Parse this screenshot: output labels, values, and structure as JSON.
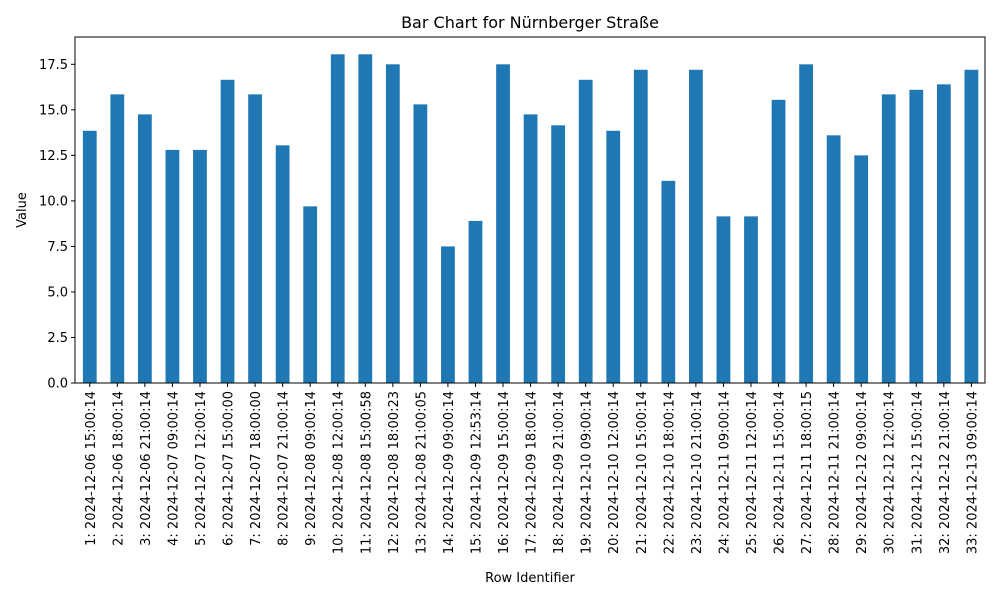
{
  "chart_data": {
    "type": "bar",
    "title": "Bar Chart for Nürnberger Straße",
    "xlabel": "Row Identifier",
    "ylabel": "Value",
    "ylim": [
      0,
      19.0
    ],
    "yticks": [
      "0.0",
      "2.5",
      "5.0",
      "7.5",
      "10.0",
      "12.5",
      "15.0",
      "17.5"
    ],
    "bar_color": "#1f77b4",
    "grid": false,
    "categories": [
      "1: 2024-12-06 15:00:14",
      "2: 2024-12-06 18:00:14",
      "3: 2024-12-06 21:00:14",
      "4: 2024-12-07 09:00:14",
      "5: 2024-12-07 12:00:14",
      "6: 2024-12-07 15:00:00",
      "7: 2024-12-07 18:00:00",
      "8: 2024-12-07 21:00:14",
      "9: 2024-12-08 09:00:14",
      "10: 2024-12-08 12:00:14",
      "11: 2024-12-08 15:00:58",
      "12: 2024-12-08 18:00:23",
      "13: 2024-12-08 21:00:05",
      "14: 2024-12-09 09:00:14",
      "15: 2024-12-09 12:53:14",
      "16: 2024-12-09 15:00:14",
      "17: 2024-12-09 18:00:14",
      "18: 2024-12-09 21:00:14",
      "19: 2024-12-10 09:00:14",
      "20: 2024-12-10 12:00:14",
      "21: 2024-12-10 15:00:14",
      "22: 2024-12-10 18:00:14",
      "23: 2024-12-10 21:00:14",
      "24: 2024-12-11 09:00:14",
      "25: 2024-12-11 12:00:14",
      "26: 2024-12-11 15:00:14",
      "27: 2024-12-11 18:00:15",
      "28: 2024-12-11 21:00:14",
      "29: 2024-12-12 09:00:14",
      "30: 2024-12-12 12:00:14",
      "31: 2024-12-12 15:00:14",
      "32: 2024-12-12 21:00:14",
      "33: 2024-12-13 09:00:14"
    ],
    "values": [
      13.85,
      15.85,
      14.75,
      12.8,
      12.8,
      16.65,
      15.85,
      13.05,
      9.7,
      18.05,
      18.05,
      17.5,
      15.3,
      7.5,
      8.9,
      17.5,
      14.75,
      14.15,
      16.65,
      13.85,
      17.2,
      11.1,
      17.2,
      9.15,
      9.15,
      15.55,
      17.5,
      13.6,
      12.5,
      15.85,
      16.1,
      16.4,
      17.2
    ]
  }
}
